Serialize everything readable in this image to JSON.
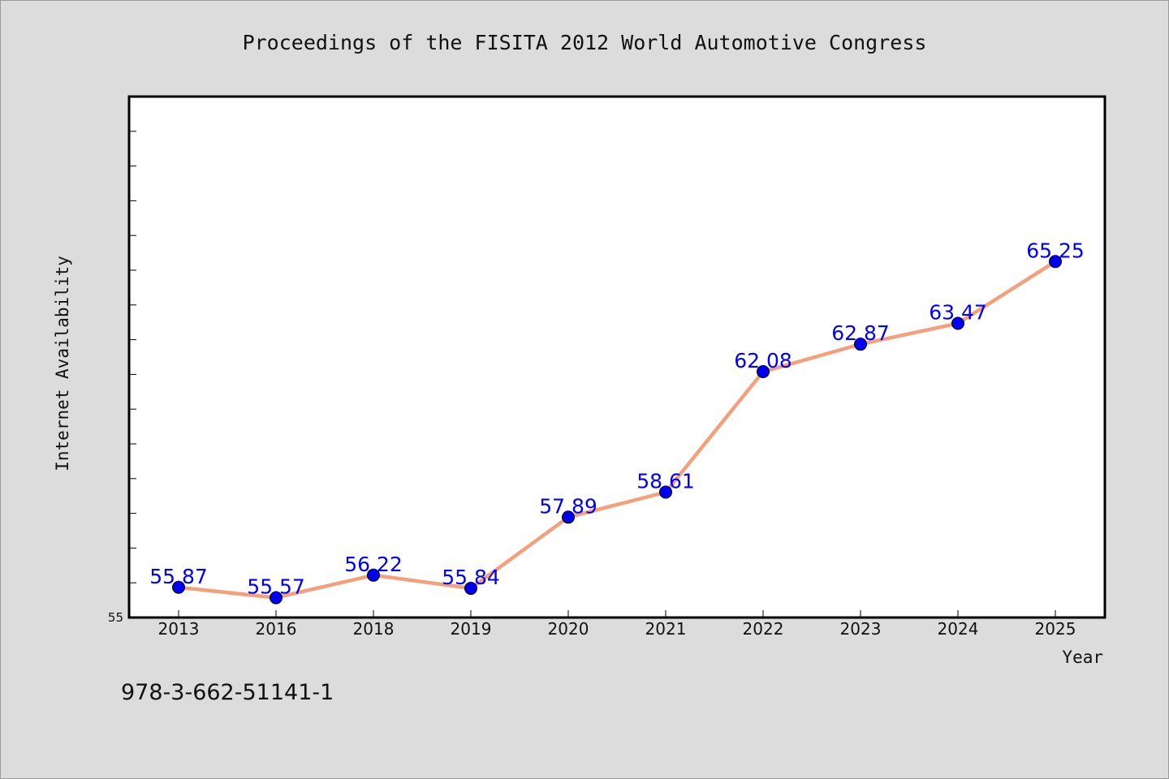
{
  "chart_data": {
    "type": "line",
    "title": "Proceedings of the FISITA 2012 World Automotive Congress",
    "xlabel": "Year",
    "ylabel": "Internet Availability",
    "categories": [
      "2013",
      "2016",
      "2018",
      "2019",
      "2020",
      "2021",
      "2022",
      "2023",
      "2024",
      "2025"
    ],
    "series": [
      {
        "values": [
          55.87,
          55.57,
          56.22,
          55.84,
          57.89,
          58.61,
          62.08,
          62.87,
          63.47,
          65.25
        ],
        "labels": [
          "55.87",
          "55.57",
          "56.22",
          "55.84",
          "57.89",
          "58.61",
          "62.08",
          "62.87",
          "63.47",
          "65.25"
        ],
        "line_color": "#f4a07c",
        "marker_color": "#0000ee"
      }
    ],
    "ylim": [
      55,
      70
    ],
    "y_min_label": "55",
    "y_minor_step": 1,
    "grid": false,
    "plot_background": "#ffffff",
    "figure_background": "#dcdcdc",
    "label_color": "#0000ff"
  },
  "footer": {
    "isbn": "978-3-662-51141-1"
  }
}
